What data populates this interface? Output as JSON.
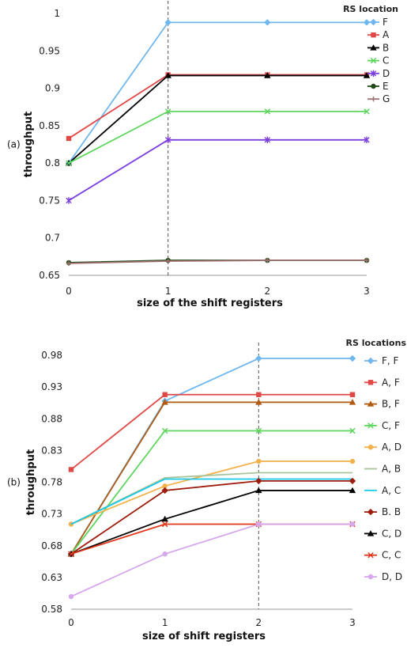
{
  "chart_data": [
    {
      "panel_label": "(a)",
      "type": "line",
      "xlabel": "size of the shift registers",
      "ylabel": "throughput",
      "x": [
        0,
        1,
        2,
        3
      ],
      "x_ticks": [
        "0",
        "1",
        "2",
        "3"
      ],
      "ylim": [
        0.65,
        1.0
      ],
      "y_ticks": [
        "0.65",
        "0.7",
        "0.75",
        "0.8",
        "0.85",
        "0.9",
        "0.95",
        "1"
      ],
      "vline_x": 1,
      "grid": false,
      "legend_title": "RS location",
      "legend_position": "top-right",
      "series": [
        {
          "name": "F",
          "color": "#6fb7ef",
          "marker": "diamond",
          "values": [
            0.8,
            0.988,
            0.988,
            0.988
          ]
        },
        {
          "name": "A",
          "color": "#e04848",
          "marker": "square",
          "values": [
            0.833,
            0.918,
            0.918,
            0.918
          ]
        },
        {
          "name": "B",
          "color": "#000000",
          "marker": "triangle",
          "values": [
            0.8,
            0.917,
            0.917,
            0.917
          ]
        },
        {
          "name": "C",
          "color": "#5ed65e",
          "marker": "x",
          "values": [
            0.8,
            0.869,
            0.869,
            0.869
          ]
        },
        {
          "name": "D",
          "color": "#7b3fe0",
          "marker": "star",
          "values": [
            0.75,
            0.831,
            0.831,
            0.831
          ]
        },
        {
          "name": "E",
          "color": "#1f4a18",
          "marker": "circle",
          "values": [
            0.667,
            0.67,
            0.67,
            0.67
          ]
        },
        {
          "name": "G",
          "color": "#a07070",
          "marker": "plus",
          "values": [
            0.666,
            0.669,
            0.67,
            0.67
          ]
        }
      ]
    },
    {
      "panel_label": "(b)",
      "type": "line",
      "xlabel": "size of shift registers",
      "ylabel": "throughput",
      "x": [
        0,
        1,
        2,
        3
      ],
      "x_ticks": [
        "0",
        "1",
        "2",
        "3"
      ],
      "ylim": [
        0.58,
        0.98
      ],
      "y_ticks": [
        "0.58",
        "0.63",
        "0.68",
        "0.73",
        "0.78",
        "0.83",
        "0.88",
        "0.93",
        "0.98"
      ],
      "vline_x": 2,
      "grid": false,
      "legend_title": "RS locations",
      "legend_position": "right",
      "series": [
        {
          "name": "F, F",
          "color": "#6fb7ef",
          "marker": "diamond",
          "values": [
            0.667,
            0.908,
            0.975,
            0.975
          ]
        },
        {
          "name": "A, F",
          "color": "#e04848",
          "marker": "square",
          "values": [
            0.8,
            0.918,
            0.918,
            0.918
          ]
        },
        {
          "name": "B, F",
          "color": "#b05a12",
          "marker": "triangle",
          "values": [
            0.667,
            0.906,
            0.906,
            0.906
          ]
        },
        {
          "name": "C, F",
          "color": "#5ed65e",
          "marker": "x",
          "values": [
            0.667,
            0.861,
            0.861,
            0.861
          ]
        },
        {
          "name": "A, D",
          "color": "#f2b14b",
          "marker": "circle",
          "values": [
            0.714,
            0.774,
            0.813,
            0.813
          ]
        },
        {
          "name": "A, B",
          "color": "#a8c49a",
          "marker": "none",
          "values": [
            0.714,
            0.787,
            0.795,
            0.795
          ]
        },
        {
          "name": "A, C",
          "color": "#17c8e8",
          "marker": "none",
          "values": [
            0.714,
            0.785,
            0.785,
            0.785
          ]
        },
        {
          "name": "B. B",
          "color": "#9e1c0c",
          "marker": "diamond",
          "values": [
            0.667,
            0.767,
            0.782,
            0.782
          ]
        },
        {
          "name": "C, D",
          "color": "#000000",
          "marker": "triangle",
          "values": [
            0.667,
            0.722,
            0.767,
            0.767
          ]
        },
        {
          "name": "C, C",
          "color": "#e0381c",
          "marker": "x",
          "values": [
            0.667,
            0.714,
            0.714,
            0.714
          ]
        },
        {
          "name": "D, D",
          "color": "#d6a6ef",
          "marker": "circle",
          "values": [
            0.6,
            0.667,
            0.714,
            0.714
          ]
        }
      ]
    }
  ]
}
